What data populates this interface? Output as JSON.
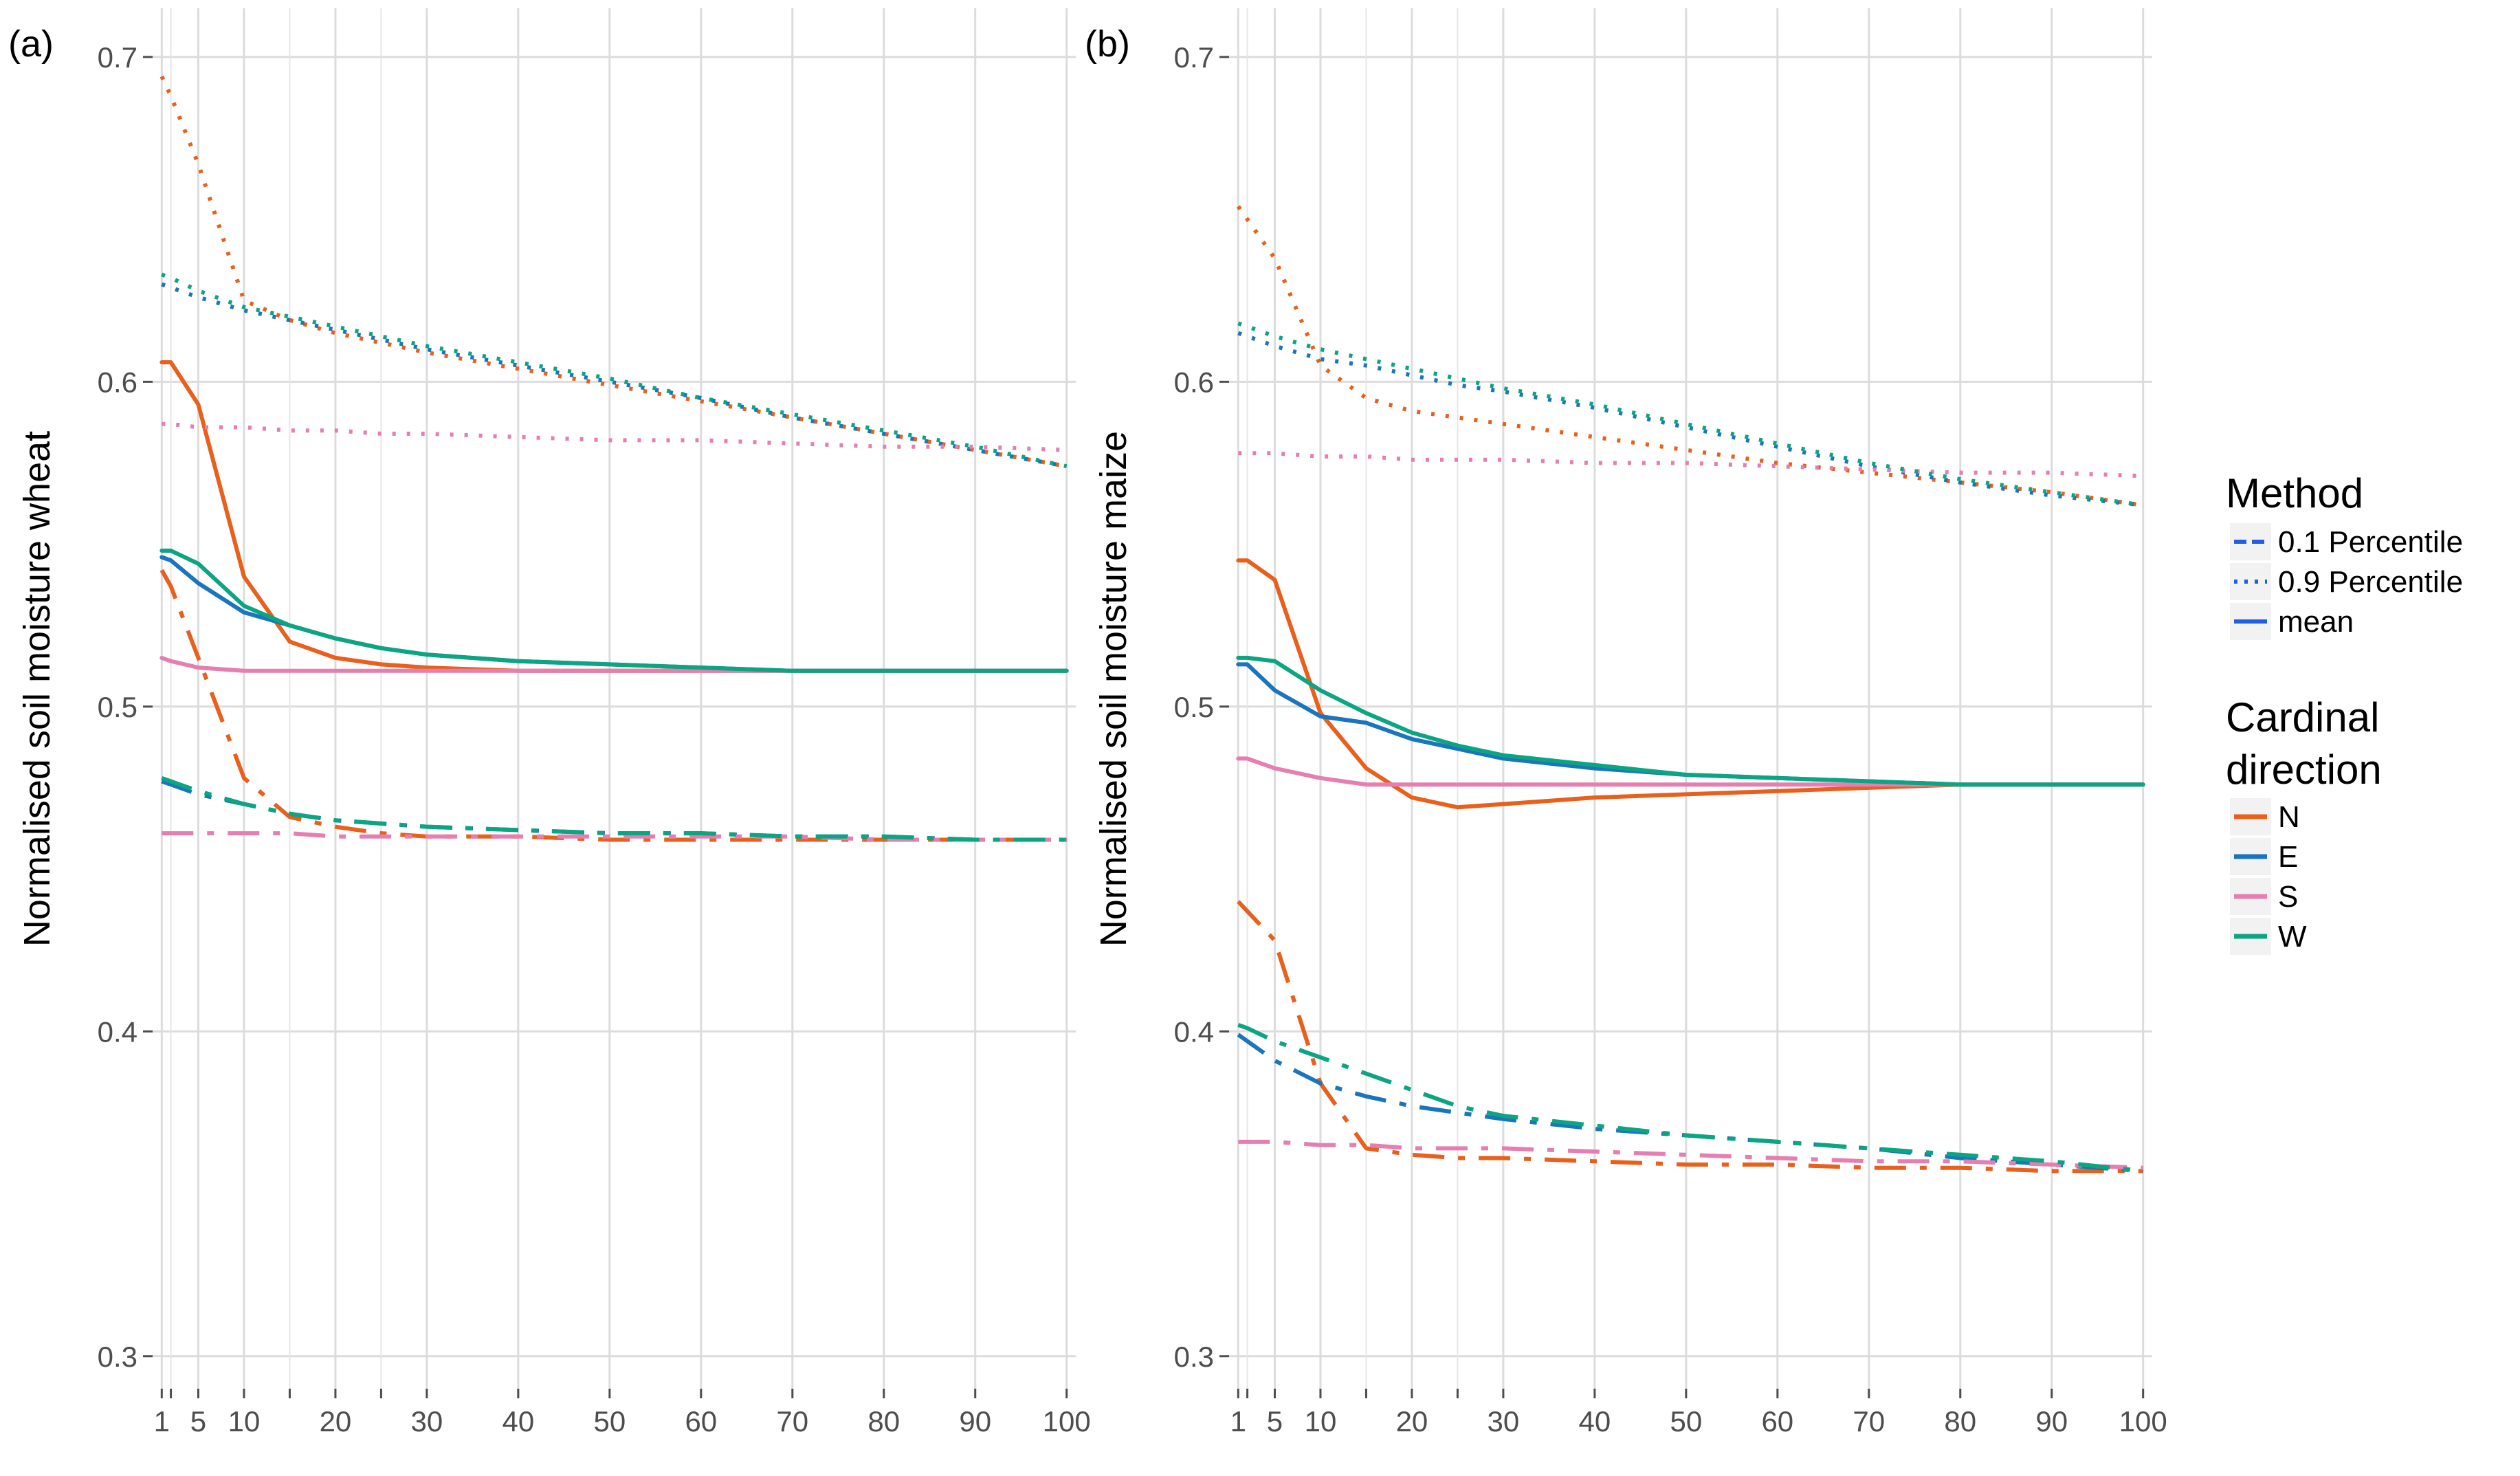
{
  "legend": {
    "method": {
      "title": "Method",
      "items": [
        {
          "label": "0.1 Percentile",
          "dash": "dashed"
        },
        {
          "label": "0.9 Percentile",
          "dash": "dotted"
        },
        {
          "label": "mean",
          "dash": "solid"
        }
      ],
      "key_color": "#1f5fe0"
    },
    "direction": {
      "title_line1": "Cardinal",
      "title_line2": "direction",
      "items": [
        {
          "label": "N",
          "color": "#e8601c"
        },
        {
          "label": "E",
          "color": "#1b75bc"
        },
        {
          "label": "S",
          "color": "#e57fb2"
        },
        {
          "label": "W",
          "color": "#0ca582"
        }
      ]
    }
  },
  "chart_data": [
    {
      "type": "line",
      "panel_label": "(a)",
      "title": "",
      "xlabel": "",
      "ylabel": "Normalised soil moisture wheat",
      "xlim": [
        0,
        101
      ],
      "ylim": [
        0.29,
        0.715
      ],
      "x_ticks": [
        1,
        5,
        10,
        20,
        30,
        40,
        50,
        60,
        70,
        80,
        90,
        100
      ],
      "x_minor_ticks": [
        2,
        15,
        25
      ],
      "x_tick_labels": [
        "1",
        "5",
        "10",
        "20",
        "30",
        "40",
        "50",
        "60",
        "70",
        "80",
        "90",
        "100"
      ],
      "y_ticks": [
        0.3,
        0.4,
        0.5,
        0.6,
        0.7
      ],
      "y_tick_labels": [
        "0.3",
        "0.4",
        "0.5",
        "0.6",
        "0.7"
      ],
      "x": [
        1,
        2,
        5,
        10,
        15,
        20,
        25,
        30,
        40,
        50,
        60,
        70,
        80,
        90,
        100
      ],
      "series": [
        {
          "name": "N mean",
          "direction": "N",
          "method": "mean",
          "values": [
            0.606,
            0.606,
            0.593,
            0.54,
            0.52,
            0.515,
            0.513,
            0.512,
            0.511,
            0.511,
            0.511,
            0.511,
            0.511,
            0.511,
            0.511
          ]
        },
        {
          "name": "E mean",
          "direction": "E",
          "method": "mean",
          "values": [
            0.546,
            0.545,
            0.538,
            0.529,
            0.525,
            0.521,
            0.518,
            0.516,
            0.514,
            0.513,
            0.512,
            0.511,
            0.511,
            0.511,
            0.511
          ]
        },
        {
          "name": "S mean",
          "direction": "S",
          "method": "mean",
          "values": [
            0.515,
            0.514,
            0.512,
            0.511,
            0.511,
            0.511,
            0.511,
            0.511,
            0.511,
            0.511,
            0.511,
            0.511,
            0.511,
            0.511,
            0.511
          ]
        },
        {
          "name": "W mean",
          "direction": "W",
          "method": "mean",
          "values": [
            0.548,
            0.548,
            0.544,
            0.531,
            0.525,
            0.521,
            0.518,
            0.516,
            0.514,
            0.513,
            0.512,
            0.511,
            0.511,
            0.511,
            0.511
          ]
        },
        {
          "name": "N 0.1 Percentile",
          "direction": "N",
          "method": "0.1 Percentile",
          "values": [
            0.542,
            0.537,
            0.515,
            0.478,
            0.466,
            0.463,
            0.461,
            0.46,
            0.46,
            0.459,
            0.459,
            0.459,
            0.459,
            0.459,
            0.459
          ]
        },
        {
          "name": "E 0.1 Percentile",
          "direction": "E",
          "method": "0.1 Percentile",
          "values": [
            0.477,
            0.476,
            0.473,
            0.47,
            0.467,
            0.465,
            0.464,
            0.463,
            0.462,
            0.461,
            0.461,
            0.46,
            0.46,
            0.459,
            0.459
          ]
        },
        {
          "name": "S 0.1 Percentile",
          "direction": "S",
          "method": "0.1 Percentile",
          "values": [
            0.461,
            0.461,
            0.461,
            0.461,
            0.461,
            0.46,
            0.46,
            0.46,
            0.46,
            0.46,
            0.46,
            0.46,
            0.459,
            0.459,
            0.459
          ]
        },
        {
          "name": "W 0.1 Percentile",
          "direction": "W",
          "method": "0.1 Percentile",
          "values": [
            0.478,
            0.477,
            0.474,
            0.47,
            0.467,
            0.465,
            0.464,
            0.463,
            0.462,
            0.461,
            0.461,
            0.46,
            0.46,
            0.459,
            0.459
          ]
        },
        {
          "name": "N 0.9 Percentile",
          "direction": "N",
          "method": "0.9 Percentile",
          "values": [
            0.694,
            0.688,
            0.667,
            0.625,
            0.619,
            0.615,
            0.612,
            0.609,
            0.604,
            0.599,
            0.594,
            0.589,
            0.584,
            0.579,
            0.574
          ]
        },
        {
          "name": "E 0.9 Percentile",
          "direction": "E",
          "method": "0.9 Percentile",
          "values": [
            0.63,
            0.629,
            0.626,
            0.622,
            0.619,
            0.616,
            0.613,
            0.61,
            0.605,
            0.6,
            0.595,
            0.589,
            0.584,
            0.579,
            0.574
          ]
        },
        {
          "name": "S 0.9 Percentile",
          "direction": "S",
          "method": "0.9 Percentile",
          "values": [
            0.587,
            0.587,
            0.586,
            0.586,
            0.585,
            0.585,
            0.584,
            0.584,
            0.583,
            0.582,
            0.582,
            0.581,
            0.58,
            0.58,
            0.579
          ]
        },
        {
          "name": "W 0.9 Percentile",
          "direction": "W",
          "method": "0.9 Percentile",
          "values": [
            0.633,
            0.632,
            0.628,
            0.623,
            0.62,
            0.617,
            0.614,
            0.611,
            0.606,
            0.601,
            0.595,
            0.59,
            0.585,
            0.58,
            0.574
          ]
        }
      ]
    },
    {
      "type": "line",
      "panel_label": "(b)",
      "title": "",
      "xlabel": "",
      "ylabel": "Normalised soil moisture maize",
      "xlim": [
        0,
        101
      ],
      "ylim": [
        0.29,
        0.715
      ],
      "x_ticks": [
        1,
        5,
        10,
        20,
        30,
        40,
        50,
        60,
        70,
        80,
        90,
        100
      ],
      "x_minor_ticks": [
        2,
        15,
        25
      ],
      "x_tick_labels": [
        "1",
        "5",
        "10",
        "20",
        "30",
        "40",
        "50",
        "60",
        "70",
        "80",
        "90",
        "100"
      ],
      "y_ticks": [
        0.3,
        0.4,
        0.5,
        0.6,
        0.7
      ],
      "y_tick_labels": [
        "0.3",
        "0.4",
        "0.5",
        "0.6",
        "0.7"
      ],
      "x": [
        1,
        2,
        5,
        10,
        15,
        20,
        25,
        30,
        40,
        50,
        60,
        70,
        80,
        90,
        100
      ],
      "series": [
        {
          "name": "N mean",
          "direction": "N",
          "method": "mean",
          "values": [
            0.545,
            0.545,
            0.539,
            0.498,
            0.481,
            0.472,
            0.469,
            0.47,
            0.472,
            0.473,
            0.474,
            0.475,
            0.476,
            0.476,
            0.476
          ]
        },
        {
          "name": "E mean",
          "direction": "E",
          "method": "mean",
          "values": [
            0.513,
            0.513,
            0.505,
            0.497,
            0.495,
            0.49,
            0.487,
            0.484,
            0.481,
            0.479,
            0.478,
            0.477,
            0.476,
            0.476,
            0.476
          ]
        },
        {
          "name": "S mean",
          "direction": "S",
          "method": "mean",
          "values": [
            0.484,
            0.484,
            0.481,
            0.478,
            0.476,
            0.476,
            0.476,
            0.476,
            0.476,
            0.476,
            0.476,
            0.476,
            0.476,
            0.476,
            0.476
          ]
        },
        {
          "name": "W mean",
          "direction": "W",
          "method": "mean",
          "values": [
            0.515,
            0.515,
            0.514,
            0.505,
            0.498,
            0.492,
            0.488,
            0.485,
            0.482,
            0.479,
            0.478,
            0.477,
            0.476,
            0.476,
            0.476
          ]
        },
        {
          "name": "N 0.1 Percentile",
          "direction": "N",
          "method": "0.1 Percentile",
          "values": [
            0.44,
            0.437,
            0.428,
            0.384,
            0.364,
            0.362,
            0.361,
            0.361,
            0.36,
            0.359,
            0.359,
            0.358,
            0.358,
            0.357,
            0.357
          ]
        },
        {
          "name": "E 0.1 Percentile",
          "direction": "E",
          "method": "0.1 Percentile",
          "values": [
            0.399,
            0.397,
            0.391,
            0.384,
            0.38,
            0.377,
            0.375,
            0.373,
            0.37,
            0.368,
            0.366,
            0.364,
            0.361,
            0.359,
            0.357
          ]
        },
        {
          "name": "S 0.1 Percentile",
          "direction": "S",
          "method": "0.1 Percentile",
          "values": [
            0.366,
            0.366,
            0.366,
            0.365,
            0.365,
            0.364,
            0.364,
            0.364,
            0.363,
            0.362,
            0.361,
            0.36,
            0.36,
            0.359,
            0.358
          ]
        },
        {
          "name": "W 0.1 Percentile",
          "direction": "W",
          "method": "0.1 Percentile",
          "values": [
            0.402,
            0.401,
            0.397,
            0.392,
            0.387,
            0.382,
            0.377,
            0.374,
            0.371,
            0.368,
            0.366,
            0.364,
            0.362,
            0.36,
            0.357
          ]
        },
        {
          "name": "N 0.9 Percentile",
          "direction": "N",
          "method": "0.9 Percentile",
          "values": [
            0.654,
            0.65,
            0.638,
            0.605,
            0.595,
            0.591,
            0.589,
            0.587,
            0.583,
            0.579,
            0.575,
            0.572,
            0.569,
            0.566,
            0.562
          ]
        },
        {
          "name": "E 0.9 Percentile",
          "direction": "E",
          "method": "0.9 Percentile",
          "values": [
            0.615,
            0.614,
            0.611,
            0.607,
            0.605,
            0.602,
            0.599,
            0.597,
            0.592,
            0.586,
            0.58,
            0.574,
            0.569,
            0.565,
            0.562
          ]
        },
        {
          "name": "S 0.9 Percentile",
          "direction": "S",
          "method": "0.9 Percentile",
          "values": [
            0.578,
            0.578,
            0.578,
            0.577,
            0.577,
            0.576,
            0.576,
            0.576,
            0.575,
            0.575,
            0.574,
            0.573,
            0.572,
            0.572,
            0.571
          ]
        },
        {
          "name": "W 0.9 Percentile",
          "direction": "W",
          "method": "0.9 Percentile",
          "values": [
            0.618,
            0.617,
            0.614,
            0.61,
            0.607,
            0.604,
            0.601,
            0.598,
            0.593,
            0.587,
            0.581,
            0.575,
            0.57,
            0.566,
            0.562
          ]
        }
      ]
    }
  ]
}
